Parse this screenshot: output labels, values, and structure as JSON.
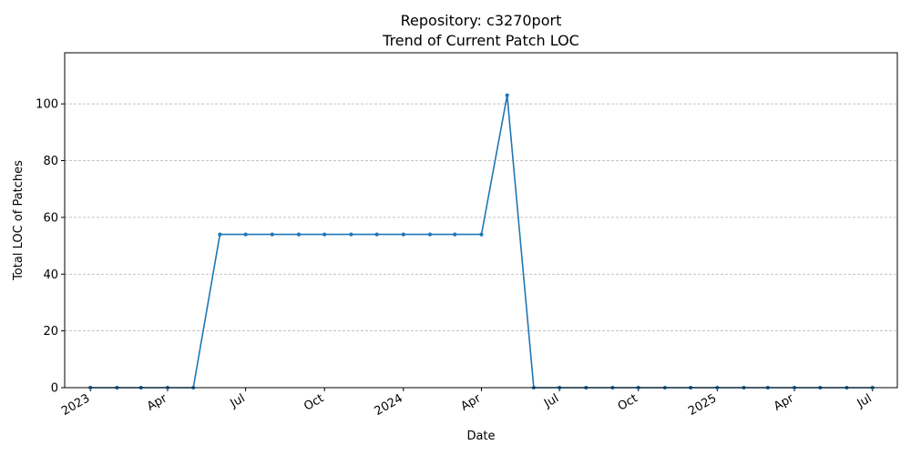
{
  "chart_data": {
    "type": "line",
    "title": "Repository: c3270port",
    "subtitle": "Trend of Current Patch LOC",
    "xlabel": "Date",
    "ylabel": "Total LOC of Patches",
    "ylim": [
      0,
      118
    ],
    "yticks": [
      0,
      20,
      40,
      60,
      80,
      100
    ],
    "xlim": [
      "2022-12-02",
      "2025-07-30"
    ],
    "xticks": [
      {
        "date": "2023-01-01",
        "label": "2023"
      },
      {
        "date": "2023-04-01",
        "label": "Apr"
      },
      {
        "date": "2023-07-01",
        "label": "Jul"
      },
      {
        "date": "2023-10-01",
        "label": "Oct"
      },
      {
        "date": "2024-01-01",
        "label": "2024"
      },
      {
        "date": "2024-04-01",
        "label": "Apr"
      },
      {
        "date": "2024-07-01",
        "label": "Jul"
      },
      {
        "date": "2024-10-01",
        "label": "Oct"
      },
      {
        "date": "2025-01-01",
        "label": "2025"
      },
      {
        "date": "2025-04-01",
        "label": "Apr"
      },
      {
        "date": "2025-07-01",
        "label": "Jul"
      }
    ],
    "grid": "y-dashed",
    "legend": "none",
    "colors": {
      "line": "#1f77b4",
      "grid": "#b0b0b0"
    },
    "series": [
      {
        "x": [
          "2023-01-01",
          "2023-02-01",
          "2023-03-01",
          "2023-04-01",
          "2023-05-01",
          "2023-06-01",
          "2023-07-01",
          "2023-08-01",
          "2023-09-01",
          "2023-10-01",
          "2023-11-01",
          "2023-12-01",
          "2024-01-01",
          "2024-02-01",
          "2024-03-01",
          "2024-04-01",
          "2024-05-01",
          "2024-06-01",
          "2024-07-01",
          "2024-08-01",
          "2024-09-01",
          "2024-10-01",
          "2024-11-01",
          "2024-12-01",
          "2025-01-01",
          "2025-02-01",
          "2025-03-01",
          "2025-04-01",
          "2025-05-01",
          "2025-06-01",
          "2025-07-01"
        ],
        "values": [
          0,
          0,
          0,
          0,
          0,
          54,
          54,
          54,
          54,
          54,
          54,
          54,
          54,
          54,
          54,
          54,
          103,
          0,
          0,
          0,
          0,
          0,
          0,
          0,
          0,
          0,
          0,
          0,
          0,
          0,
          0
        ]
      }
    ]
  }
}
